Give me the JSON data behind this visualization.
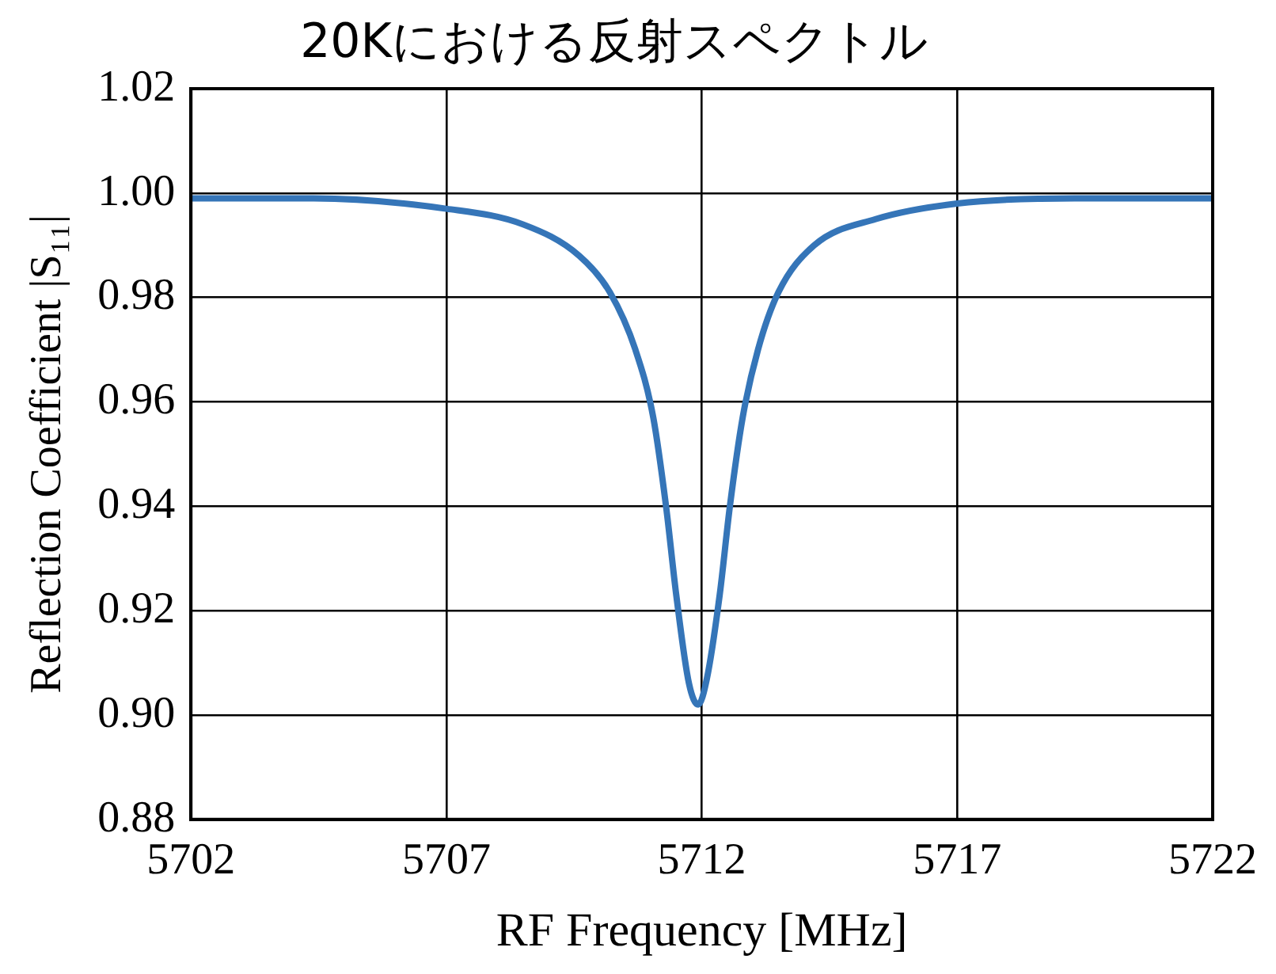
{
  "chart_data": {
    "type": "line",
    "title": "20Kにおける反射スペクトル",
    "xlabel": "RF Frequency [MHz]",
    "ylabel": "Reflection Coefficient |S₁₁|",
    "xlim": [
      5702,
      5722
    ],
    "xticks": [
      5702,
      5707,
      5712,
      5717,
      5722
    ],
    "ylim": [
      0.88,
      1.02
    ],
    "yticks": [
      {
        "value": 0.88,
        "label": "0.88"
      },
      {
        "value": 0.9,
        "label": "0.90"
      },
      {
        "value": 0.92,
        "label": "0.92"
      },
      {
        "value": 0.94,
        "label": "0.94"
      },
      {
        "value": 0.96,
        "label": "0.96"
      },
      {
        "value": 0.98,
        "label": "0.98"
      },
      {
        "value": 1.0,
        "label": "1.00"
      },
      {
        "value": 1.02,
        "label": "1.02"
      }
    ],
    "grid": true,
    "legend": false,
    "marker": "none",
    "line_style": "solid",
    "series": [
      {
        "color": "#3575b8",
        "x": [
          5702,
          5704.4,
          5707,
          5708.5,
          5709.6,
          5710.2,
          5710.7,
          5711.05,
          5711.3,
          5711.5,
          5711.75,
          5711.93,
          5712.1,
          5712.35,
          5712.55,
          5712.8,
          5713.1,
          5713.5,
          5714.2,
          5715.4,
          5717,
          5719.3,
          5722
        ],
        "values": [
          0.999,
          0.999,
          0.997,
          0.994,
          0.988,
          0.981,
          0.97,
          0.957,
          0.94,
          0.923,
          0.906,
          0.902,
          0.907,
          0.923,
          0.94,
          0.957,
          0.97,
          0.981,
          0.99,
          0.995,
          0.998,
          0.999,
          0.999
        ]
      }
    ]
  }
}
